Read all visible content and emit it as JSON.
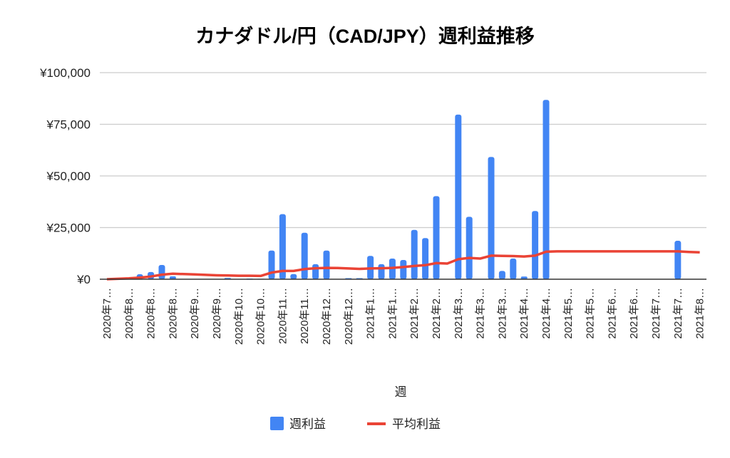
{
  "chart_data": {
    "type": "bar+line",
    "title": "カナダドル/円（CAD/JPY）週利益推移",
    "xlabel": "週",
    "ylabel": "",
    "ylim": [
      0,
      100000
    ],
    "y_ticks": [
      "¥0",
      "¥25,000",
      "¥50,000",
      "¥75,000",
      "¥100,000"
    ],
    "y_tick_values": [
      0,
      25000,
      50000,
      75000,
      100000
    ],
    "grid": true,
    "legend": "bottom",
    "x_tick_labels": [
      "2020年7…",
      "2020年8…",
      "2020年8…",
      "2020年8…",
      "2020年9…",
      "2020年9…",
      "2020年10…",
      "2020年10…",
      "2020年11…",
      "2020年11…",
      "2020年12…",
      "2020年12…",
      "2021年1…",
      "2021年1…",
      "2021年2…",
      "2021年2…",
      "2021年3…",
      "2021年3…",
      "2021年3…",
      "2021年4…",
      "2021年4…",
      "2021年5…",
      "2021年5…",
      "2021年6…",
      "2021年6…",
      "2021年7…",
      "2021年7…",
      "2021年8…"
    ],
    "series": [
      {
        "name": "週利益",
        "type": "bar",
        "color": "#4285f4",
        "values": [
          0,
          0,
          0,
          2400,
          3500,
          6900,
          1400,
          0,
          0,
          0,
          0,
          600,
          0,
          300,
          200,
          13900,
          31500,
          2500,
          22500,
          7300,
          13900,
          0,
          500,
          500,
          11300,
          7300,
          10000,
          9300,
          23900,
          19900,
          40200,
          0,
          79700,
          30200,
          0,
          59200,
          4000,
          10000,
          1300,
          33000,
          86800,
          0,
          0,
          0,
          0,
          0,
          0,
          0,
          0,
          0,
          0,
          0,
          18600,
          0,
          0
        ]
      },
      {
        "name": "平均利益",
        "type": "line",
        "color": "#ea4335",
        "values": [
          0,
          200,
          400,
          800,
          1300,
          2200,
          2700,
          2500,
          2300,
          2100,
          1900,
          1800,
          1700,
          1700,
          1600,
          3200,
          4000,
          4000,
          4900,
          5300,
          5500,
          5400,
          5200,
          5000,
          5200,
          5300,
          5500,
          5900,
          6400,
          6800,
          7800,
          7600,
          9700,
          10300,
          10000,
          11400,
          11300,
          11200,
          11000,
          11400,
          13300,
          13500,
          13500,
          13500,
          13500,
          13500,
          13500,
          13500,
          13500,
          13500,
          13500,
          13500,
          13500,
          13200,
          13000
        ]
      }
    ]
  }
}
